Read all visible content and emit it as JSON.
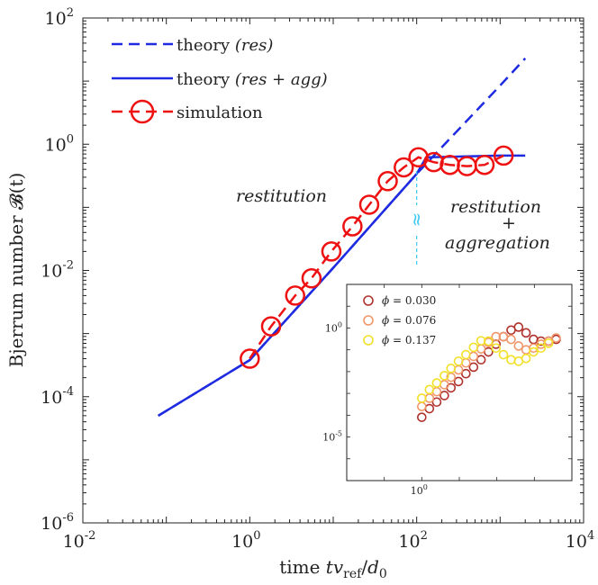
{
  "chart_data": [
    {
      "type": "line",
      "xscale": "log",
      "yscale": "log",
      "xlim": [
        0.01,
        10000
      ],
      "ylim": [
        1e-06,
        100
      ],
      "xticks": [
        {
          "base": "10",
          "exp": "-2"
        },
        {
          "base": "10",
          "exp": "0"
        },
        {
          "base": "10",
          "exp": "2"
        },
        {
          "base": "10",
          "exp": "4"
        }
      ],
      "yticks": [
        {
          "base": "10",
          "exp": "-6"
        },
        {
          "base": "10",
          "exp": "-4"
        },
        {
          "base": "10",
          "exp": "-2"
        },
        {
          "base": "10",
          "exp": "0"
        },
        {
          "base": "10",
          "exp": "2"
        }
      ],
      "xlabel": {
        "prefix": "time ",
        "var": "tv",
        "sub": "ref",
        "mid": "/",
        "var2": "d",
        "sub2": "0"
      },
      "ylabel": "Bjerrum number 𝓑(t)",
      "series": [
        {
          "name": "theory (res)",
          "legend_plain": "theory ",
          "legend_math": "(res)",
          "style": "dashed",
          "color": "#1f2be0",
          "x": [
            0.08,
            1,
            10,
            100,
            1000,
            2000
          ],
          "y": [
            5e-05,
            0.00038,
            0.011,
            0.34,
            8.5,
            23
          ]
        },
        {
          "name": "theory (res + agg)",
          "legend_plain": "theory ",
          "legend_math": "(res + agg)",
          "style": "solid",
          "color": "#1f2be0",
          "x": [
            0.08,
            1,
            10,
            100,
            130,
            1000,
            2000
          ],
          "y": [
            5e-05,
            0.00038,
            0.011,
            0.34,
            0.62,
            0.66,
            0.66
          ]
        },
        {
          "name": "simulation",
          "legend_plain": "simulation",
          "legend_math": "",
          "style": "dashed-circle",
          "color": "#ee1111",
          "x": [
            1,
            1.8,
            3.5,
            5.5,
            9.5,
            17,
            27,
            45,
            70,
            105,
            160,
            250,
            400,
            650,
            1100
          ],
          "y": [
            0.0004,
            0.0013,
            0.004,
            0.0075,
            0.02,
            0.05,
            0.11,
            0.26,
            0.43,
            0.62,
            0.52,
            0.47,
            0.45,
            0.47,
            0.66
          ]
        }
      ],
      "annotations": {
        "left": "restitution",
        "right_top": "restitution",
        "right_plus": "+",
        "right_bottom": "aggregation",
        "break_symbol": "≈",
        "break_x": 100
      }
    },
    {
      "type": "scatter",
      "inset": true,
      "xscale": "log",
      "yscale": "log",
      "xlim": [
        0.01,
        10000
      ],
      "ylim": [
        1e-07,
        100
      ],
      "xticks": [
        {
          "base": "10",
          "exp": "0"
        }
      ],
      "yticks": [
        {
          "base": "10",
          "exp": "-5"
        },
        {
          "base": "10",
          "exp": "0"
        }
      ],
      "series": [
        {
          "name": "ϕ = 0.030",
          "phi": "0.030",
          "color": "#b0322c",
          "x": [
            1,
            1.6,
            2.5,
            4,
            6,
            9.5,
            15,
            24,
            38,
            60,
            95,
            150,
            240,
            380,
            600,
            950,
            1500,
            2400,
            3800
          ],
          "y": [
            8e-05,
            0.0002,
            0.0004,
            0.0008,
            0.0018,
            0.0035,
            0.008,
            0.016,
            0.035,
            0.08,
            0.18,
            0.4,
            0.8,
            1.1,
            0.6,
            0.3,
            0.25,
            0.25,
            0.3
          ]
        },
        {
          "name": "ϕ = 0.076",
          "phi": "0.076",
          "color": "#f0976a",
          "x": [
            1,
            1.6,
            2.5,
            4,
            6,
            9.5,
            15,
            24,
            38,
            60,
            95,
            150,
            240,
            380,
            600,
            950,
            1500,
            2400,
            3800
          ],
          "y": [
            0.00025,
            0.0006,
            0.0012,
            0.0025,
            0.0055,
            0.012,
            0.025,
            0.05,
            0.11,
            0.22,
            0.4,
            0.4,
            0.3,
            0.15,
            0.1,
            0.12,
            0.18,
            0.25,
            0.35
          ]
        },
        {
          "name": "ϕ = 0.137",
          "phi": "0.137",
          "color": "#f2e12a",
          "x": [
            1,
            1.6,
            2.5,
            4,
            6,
            9.5,
            15,
            24,
            38,
            60,
            95,
            150,
            240,
            380,
            600,
            950,
            1500,
            2400
          ],
          "y": [
            0.0006,
            0.0015,
            0.003,
            0.0065,
            0.014,
            0.03,
            0.06,
            0.13,
            0.26,
            0.25,
            0.12,
            0.06,
            0.035,
            0.03,
            0.04,
            0.08,
            0.12,
            0.2
          ]
        }
      ]
    }
  ]
}
